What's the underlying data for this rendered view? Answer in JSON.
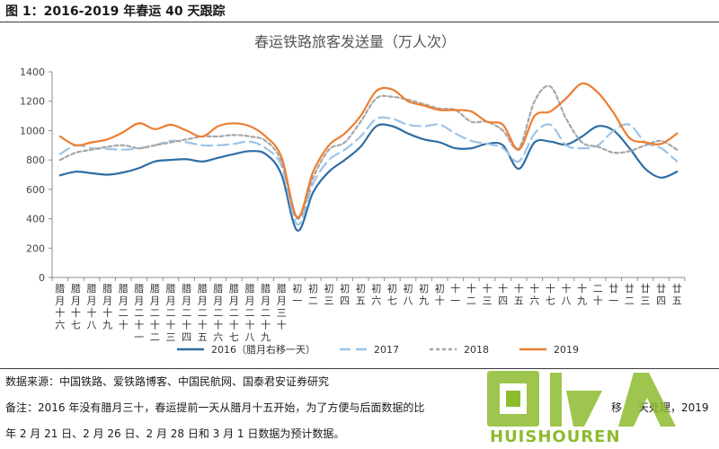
{
  "caption": "图 1：2016-2019 年春运 40 天跟踪",
  "chart_data": {
    "type": "line",
    "title": "春运铁路旅客发送量（万人次）",
    "xlabel": "",
    "ylabel": "",
    "ylim": [
      0,
      1400
    ],
    "yticks": [
      "0",
      "200",
      "400",
      "600",
      "800",
      "1000",
      "1200",
      "1400"
    ],
    "grid": false,
    "legend": "bottom",
    "categories": [
      "腊月十六",
      "腊月十七",
      "腊月十八",
      "腊月十九",
      "腊月二十",
      "腊月二十一",
      "腊月二十二",
      "腊月二十三",
      "腊月二十四",
      "腊月二十五",
      "腊月二十六",
      "腊月二十七",
      "腊月二十八",
      "腊月二十九",
      "腊月三十",
      "初一",
      "初二",
      "初三",
      "初四",
      "初五",
      "初六",
      "初七",
      "初八",
      "初九",
      "初十",
      "十一",
      "十二",
      "十三",
      "十四",
      "十五",
      "十六",
      "十七",
      "十八",
      "十九",
      "二十",
      "廿一",
      "廿二",
      "廿三",
      "廿四",
      "廿五"
    ],
    "category_labels": [
      [
        "腊",
        "月",
        "十",
        "六"
      ],
      [
        "腊",
        "月",
        "十",
        "七"
      ],
      [
        "腊",
        "月",
        "十",
        "八"
      ],
      [
        "腊",
        "月",
        "十",
        "九"
      ],
      [
        "腊",
        "月",
        "二",
        "十"
      ],
      [
        "腊",
        "月",
        "二",
        "十",
        "一"
      ],
      [
        "腊",
        "月",
        "二",
        "十",
        "二"
      ],
      [
        "腊",
        "月",
        "二",
        "十",
        "三"
      ],
      [
        "腊",
        "月",
        "二",
        "十",
        "四"
      ],
      [
        "腊",
        "月",
        "二",
        "十",
        "五"
      ],
      [
        "腊",
        "月",
        "二",
        "十",
        "六"
      ],
      [
        "腊",
        "月",
        "二",
        "十",
        "七"
      ],
      [
        "腊",
        "月",
        "二",
        "十",
        "八"
      ],
      [
        "腊",
        "月",
        "二",
        "十",
        "九"
      ],
      [
        "腊",
        "月",
        "三",
        "十"
      ],
      [
        "初",
        "一"
      ],
      [
        "初",
        "二"
      ],
      [
        "初",
        "三"
      ],
      [
        "初",
        "四"
      ],
      [
        "初",
        "五"
      ],
      [
        "初",
        "六"
      ],
      [
        "初",
        "七"
      ],
      [
        "初",
        "八"
      ],
      [
        "初",
        "九"
      ],
      [
        "初",
        "十"
      ],
      [
        "十",
        "一"
      ],
      [
        "十",
        "二"
      ],
      [
        "十",
        "三"
      ],
      [
        "十",
        "四"
      ],
      [
        "十",
        "五"
      ],
      [
        "十",
        "六"
      ],
      [
        "十",
        "七"
      ],
      [
        "十",
        "八"
      ],
      [
        "十",
        "九"
      ],
      [
        "二",
        "十"
      ],
      [
        "廿",
        "一"
      ],
      [
        "廿",
        "二"
      ],
      [
        "廿",
        "三"
      ],
      [
        "廿",
        "四"
      ],
      [
        "廿",
        "五"
      ]
    ],
    "series": [
      {
        "name": "2016（腊月右移一天）",
        "color": "#2e6da4",
        "dash": "solid",
        "values": [
          695,
          720,
          710,
          700,
          715,
          745,
          790,
          800,
          805,
          790,
          815,
          840,
          860,
          840,
          700,
          320,
          580,
          720,
          800,
          890,
          1030,
          1030,
          980,
          940,
          920,
          880,
          880,
          910,
          900,
          740,
          920,
          925,
          905,
          960,
          1030,
          1000,
          880,
          740,
          680,
          720
        ]
      },
      {
        "name": "2017",
        "color": "#9ec3e6",
        "dash": "long",
        "values": [
          840,
          900,
          880,
          875,
          870,
          880,
          900,
          930,
          920,
          900,
          900,
          910,
          925,
          880,
          760,
          360,
          640,
          800,
          870,
          960,
          1080,
          1080,
          1040,
          1030,
          1040,
          980,
          930,
          910,
          880,
          790,
          980,
          1040,
          900,
          880,
          900,
          1000,
          1040,
          920,
          880,
          790
        ]
      },
      {
        "name": "2018",
        "color": "#a6a6a6",
        "dash": "short",
        "values": [
          800,
          850,
          870,
          890,
          900,
          880,
          900,
          920,
          940,
          960,
          960,
          970,
          960,
          930,
          790,
          400,
          680,
          870,
          920,
          1060,
          1220,
          1230,
          1210,
          1180,
          1150,
          1140,
          1060,
          1060,
          1000,
          880,
          1200,
          1300,
          1080,
          920,
          890,
          850,
          860,
          900,
          930,
          870
        ]
      },
      {
        "name": "2019",
        "color": "#ed7d31",
        "dash": "solid",
        "values": [
          960,
          900,
          920,
          940,
          990,
          1050,
          1010,
          1040,
          1000,
          960,
          1030,
          1050,
          1030,
          960,
          820,
          410,
          720,
          900,
          980,
          1100,
          1270,
          1280,
          1200,
          1170,
          1140,
          1140,
          1130,
          1060,
          1040,
          870,
          1100,
          1130,
          1220,
          1320,
          1260,
          1120,
          950,
          920,
          910,
          980
        ]
      }
    ]
  },
  "notes": {
    "source": "数据来源：中国铁路、爱铁路博客、中国民航网、国泰君安证券研究",
    "remark_line1": "备注：2016 年没有腊月三十，春运提前一天从腊月十五开始，为了方便与后面数据的比",
    "remark_line1_tail_a": "移",
    "remark_line1_tail_b": "天处理，2019",
    "remark_line2": "年 2 月 21 日、2 月 26 日、2 月 28 日和 3 月 1 日数据为预计数据。"
  },
  "watermark": {
    "text": "HUISHOUREN",
    "color": "#8dbb2e"
  }
}
